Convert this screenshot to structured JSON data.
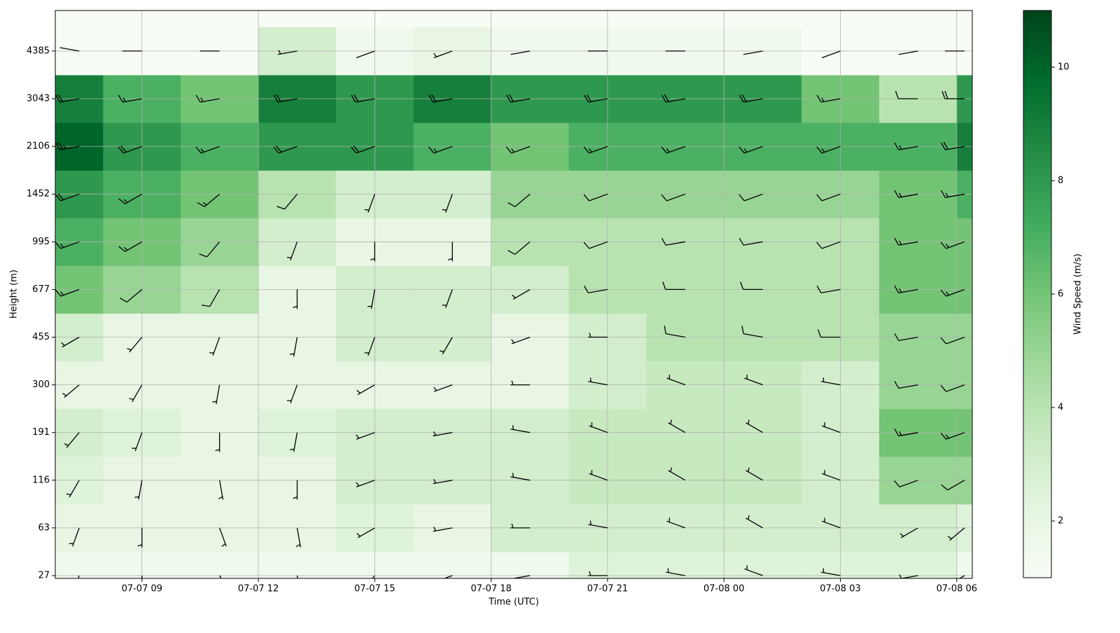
{
  "chart_data": {
    "type": "heatmap-barbs",
    "x_label": "Time (UTC)",
    "y_label": "Height (m)",
    "colorbar_label": "Wind Speed (m/s)",
    "xlim": [
      "07-07 06:46",
      "07-08 06:24"
    ],
    "xticks": [
      "07-07 09",
      "07-07 12",
      "07-07 15",
      "07-07 18",
      "07-07 21",
      "07-08 00",
      "07-08 03",
      "07-08 06"
    ],
    "x_edges": [
      "07-07 06:46",
      "07-07 08:00",
      "07-07 10:00",
      "07-07 12:00",
      "07-07 14:00",
      "07-07 16:00",
      "07-07 18:00",
      "07-07 20:00",
      "07-07 22:00",
      "07-08 00:00",
      "07-08 02:00",
      "07-08 04:00",
      "07-08 06:00",
      "07-08 06:24"
    ],
    "heights": [
      27,
      63,
      116,
      191,
      300,
      455,
      677,
      995,
      1452,
      2106,
      3043,
      4385
    ],
    "speed": [
      [
        1.5,
        1.5,
        1.5,
        1.5,
        1.5,
        1.5,
        1.5,
        2.5,
        2.5,
        2.5,
        2.5,
        2.5,
        1.5
      ],
      [
        2,
        2,
        2,
        2,
        2.5,
        2,
        3,
        3,
        3,
        3,
        3,
        3,
        2.5
      ],
      [
        2.5,
        2,
        2,
        2,
        3,
        3,
        3,
        3.5,
        3.5,
        3.5,
        3,
        5,
        5
      ],
      [
        3,
        2.5,
        2,
        2.5,
        3,
        3,
        3,
        3.5,
        3.5,
        3.5,
        3,
        6,
        6
      ],
      [
        2,
        2,
        2,
        2,
        2,
        2,
        2,
        3,
        3.5,
        3.5,
        3,
        5,
        5
      ],
      [
        3,
        2,
        2,
        2,
        3,
        3,
        2,
        3,
        4,
        4,
        4,
        5,
        5
      ],
      [
        6,
        5,
        4,
        2,
        3,
        3,
        3,
        4,
        4,
        4,
        4,
        6,
        6
      ],
      [
        7,
        6,
        5,
        3,
        2,
        2,
        4,
        4,
        4,
        4,
        4,
        6,
        6
      ],
      [
        8,
        7,
        6,
        4,
        3,
        3,
        5,
        5,
        5,
        5,
        5,
        6,
        7
      ],
      [
        10,
        8,
        7,
        8,
        8,
        7,
        6,
        7,
        7,
        7,
        7,
        7,
        9
      ],
      [
        9,
        7,
        6,
        9,
        8,
        9,
        8,
        8,
        8,
        8,
        6,
        4,
        8
      ],
      [
        1,
        1,
        1,
        3,
        1.5,
        2,
        1.5,
        1.5,
        1.5,
        1.5,
        1,
        1,
        1
      ]
    ],
    "direction": [
      [
        200,
        180,
        150,
        170,
        220,
        250,
        260,
        270,
        280,
        290,
        280,
        260,
        240
      ],
      [
        200,
        180,
        160,
        170,
        240,
        260,
        270,
        280,
        290,
        300,
        290,
        240,
        230
      ],
      [
        210,
        190,
        170,
        180,
        250,
        260,
        280,
        290,
        300,
        300,
        290,
        250,
        240
      ],
      [
        220,
        200,
        180,
        190,
        250,
        260,
        280,
        290,
        300,
        300,
        290,
        260,
        250
      ],
      [
        230,
        210,
        190,
        200,
        240,
        250,
        270,
        280,
        290,
        290,
        280,
        260,
        250
      ],
      [
        240,
        220,
        200,
        190,
        200,
        210,
        250,
        270,
        280,
        280,
        270,
        260,
        250
      ],
      [
        250,
        230,
        210,
        180,
        190,
        200,
        240,
        260,
        270,
        270,
        260,
        260,
        250
      ],
      [
        250,
        240,
        220,
        200,
        180,
        180,
        230,
        250,
        260,
        260,
        250,
        260,
        250
      ],
      [
        250,
        240,
        230,
        220,
        200,
        200,
        230,
        250,
        250,
        250,
        250,
        260,
        260
      ],
      [
        260,
        250,
        250,
        250,
        250,
        250,
        250,
        250,
        250,
        250,
        250,
        260,
        260
      ],
      [
        260,
        260,
        260,
        260,
        260,
        260,
        260,
        260,
        260,
        260,
        260,
        270,
        270
      ],
      [
        280,
        270,
        270,
        260,
        250,
        250,
        260,
        270,
        270,
        260,
        250,
        260,
        270
      ]
    ],
    "clim": [
      1,
      11
    ],
    "cticks": [
      2,
      4,
      6,
      8,
      10
    ],
    "colormap": [
      "#f7fcf5",
      "#e5f5e0",
      "#c7e9c0",
      "#a1d99b",
      "#74c476",
      "#41ab5d",
      "#238b45",
      "#006d2c",
      "#00441b"
    ],
    "grid": true
  }
}
